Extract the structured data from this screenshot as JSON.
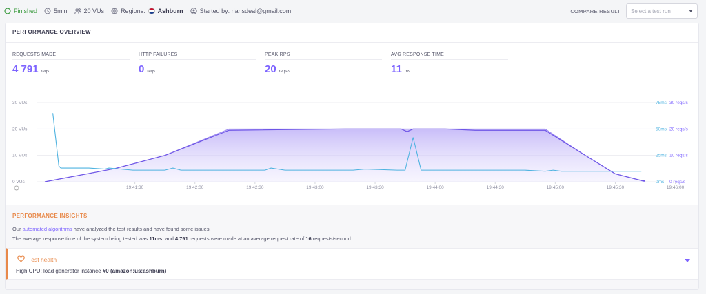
{
  "topbar": {
    "status": "Finished",
    "duration": "5min",
    "vus": "20 VUs",
    "regions_label": "Regions:",
    "region_name": "Ashburn",
    "started_by": "Started by: riansdeal@gmail.com",
    "compare_label": "COMPARE RESULT",
    "compare_placeholder": "Select a test run"
  },
  "overview": {
    "title": "PERFORMANCE OVERVIEW",
    "kpis": [
      {
        "label": "REQUESTS MADE",
        "value": "4 791",
        "unit": "reqs"
      },
      {
        "label": "HTTP FAILURES",
        "value": "0",
        "unit": "reqs"
      },
      {
        "label": "PEAK RPS",
        "value": "20",
        "unit": "reqs/s"
      },
      {
        "label": "AVG RESPONSE TIME",
        "value": "11",
        "unit": "ms"
      }
    ]
  },
  "chart_data": {
    "type": "line",
    "x_ticks": [
      "19:41:30",
      "19:42:00",
      "19:42:30",
      "19:43:00",
      "19:43:30",
      "19:44:00",
      "19:44:30",
      "19:45:00",
      "19:45:30",
      "19:46:00"
    ],
    "left_ticks": [
      "30 VUs",
      "20 VUs",
      "10 VUs",
      "0 VUs"
    ],
    "right_ms_ticks": [
      "75ms",
      "50ms",
      "25ms",
      "0ms"
    ],
    "right_rps_ticks": [
      "30 reqs/s",
      "20 reqs/s",
      "10 reqs/s",
      "0 reqs/s"
    ],
    "vus": {
      "t": [
        0,
        35,
        60,
        92,
        150,
        178,
        185,
        200,
        215,
        250,
        270,
        285,
        300
      ],
      "v": [
        0,
        5,
        10,
        20,
        20,
        20,
        20,
        20,
        20,
        20,
        10,
        3,
        0
      ]
    },
    "rps": {
      "t": [
        0,
        35,
        45,
        60,
        92,
        150,
        178,
        181,
        184,
        200,
        215,
        250,
        270,
        285,
        298,
        300
      ],
      "v": [
        0,
        5,
        7,
        10,
        19.5,
        20,
        20,
        19,
        20,
        20,
        19.5,
        19.5,
        10,
        3,
        0.5,
        0.3
      ]
    },
    "response_ms": {
      "t": [
        4,
        7,
        8,
        22,
        30,
        32,
        44,
        60,
        64,
        68,
        80,
        100,
        110,
        113,
        120,
        140,
        154,
        160,
        176,
        180,
        184,
        188,
        200,
        215,
        240,
        250,
        254,
        258,
        280,
        298
      ],
      "v": [
        65,
        15,
        13,
        13,
        12,
        13,
        11,
        11,
        13,
        11,
        11,
        11,
        11,
        13,
        11,
        11,
        11,
        12,
        11,
        11,
        42,
        11,
        11,
        11,
        11,
        10,
        11,
        10,
        10,
        10
      ]
    },
    "vus_max": 30,
    "ms_max": 75,
    "rps_max": 30,
    "t_max": 300
  },
  "insights": {
    "title": "PERFORMANCE INSIGHTS",
    "line1_pre": "Our ",
    "line1_link": "automated algorithms",
    "line1_post": " have analyzed the test results and have found some issues.",
    "line2_a": "The average response time of the system being tested was ",
    "line2_b": "11ms",
    "line2_c": ", and ",
    "line2_d": "4 791",
    "line2_e": " requests were made at an average request rate of ",
    "line2_f": "16",
    "line2_g": " requests/second."
  },
  "health": {
    "title": "Test health",
    "desc_pre": "High CPU: load generator instance ",
    "desc_bold": "#0 (amazon:us:ashburn)"
  },
  "colors": {
    "accent": "#7d64ff",
    "response": "#4fb3e0",
    "warning": "#e8894a",
    "ok": "#3a9a3e"
  }
}
